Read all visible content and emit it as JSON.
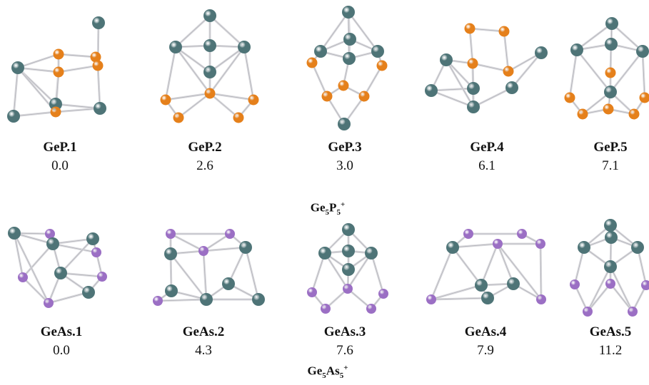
{
  "colors": {
    "ge": "#4e7477",
    "p": "#e5801b",
    "as": "#9b6fc4",
    "bond": "#d9d9dd"
  },
  "top_row": {
    "formula": {
      "base1": "Ge",
      "sub1": "5",
      "base2": "P",
      "sub2": "5",
      "charge": "+"
    },
    "isomers": [
      {
        "name": "GeP.1",
        "energy": "0.0"
      },
      {
        "name": "GeP.2",
        "energy": "2.6"
      },
      {
        "name": "GeP.3",
        "energy": "3.0"
      },
      {
        "name": "GeP.4",
        "energy": "6.1"
      },
      {
        "name": "GeP.5",
        "energy": "7.1"
      }
    ]
  },
  "bottom_row": {
    "formula": {
      "base1": "Ge",
      "sub1": "5",
      "base2": "As",
      "sub2": "5",
      "charge": "+"
    },
    "isomers": [
      {
        "name": "GeAs.1",
        "energy": "0.0"
      },
      {
        "name": "GeAs.2",
        "energy": "4.3"
      },
      {
        "name": "GeAs.3",
        "energy": "7.6"
      },
      {
        "name": "GeAs.4",
        "energy": "7.9"
      },
      {
        "name": "GeAs.5",
        "energy": "11.2"
      }
    ]
  }
}
